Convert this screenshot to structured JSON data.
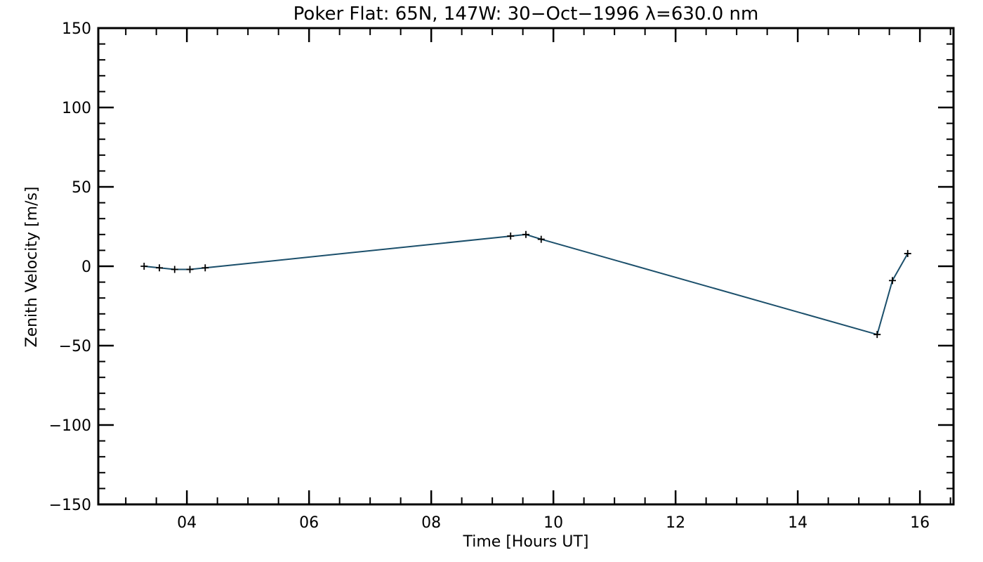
{
  "chart_data": {
    "type": "line",
    "title": "Poker Flat: 65N, 147W: 30−Oct−1996 λ=630.0 nm",
    "xlabel": "Time [Hours UT]",
    "ylabel": "Zenith Velocity [m/s]",
    "xlim": [
      2.55,
      16.55
    ],
    "ylim": [
      -150,
      150
    ],
    "x_ticks": [
      {
        "value": 4,
        "label": "04"
      },
      {
        "value": 6,
        "label": "06"
      },
      {
        "value": 8,
        "label": "08"
      },
      {
        "value": 10,
        "label": "10"
      },
      {
        "value": 12,
        "label": "12"
      },
      {
        "value": 14,
        "label": "14"
      },
      {
        "value": 16,
        "label": "16"
      }
    ],
    "y_ticks": [
      {
        "value": 150,
        "label": "150"
      },
      {
        "value": 100,
        "label": "100"
      },
      {
        "value": 50,
        "label": "50"
      },
      {
        "value": 0,
        "label": "0"
      },
      {
        "value": -50,
        "label": "−50"
      },
      {
        "value": -100,
        "label": "−100"
      },
      {
        "value": -150,
        "label": "−150"
      }
    ],
    "x_minor_step": 0.5,
    "y_minor_step": 10,
    "grid": false,
    "series": [
      {
        "marker": "plus",
        "color": "#1b4f6b",
        "x": [
          3.3,
          3.55,
          3.8,
          4.05,
          4.3,
          9.3,
          9.55,
          9.8,
          15.3,
          15.55,
          15.8
        ],
        "y": [
          0,
          -1,
          -2,
          -2,
          -1,
          19,
          20,
          17,
          -43,
          -9,
          8
        ]
      }
    ]
  }
}
